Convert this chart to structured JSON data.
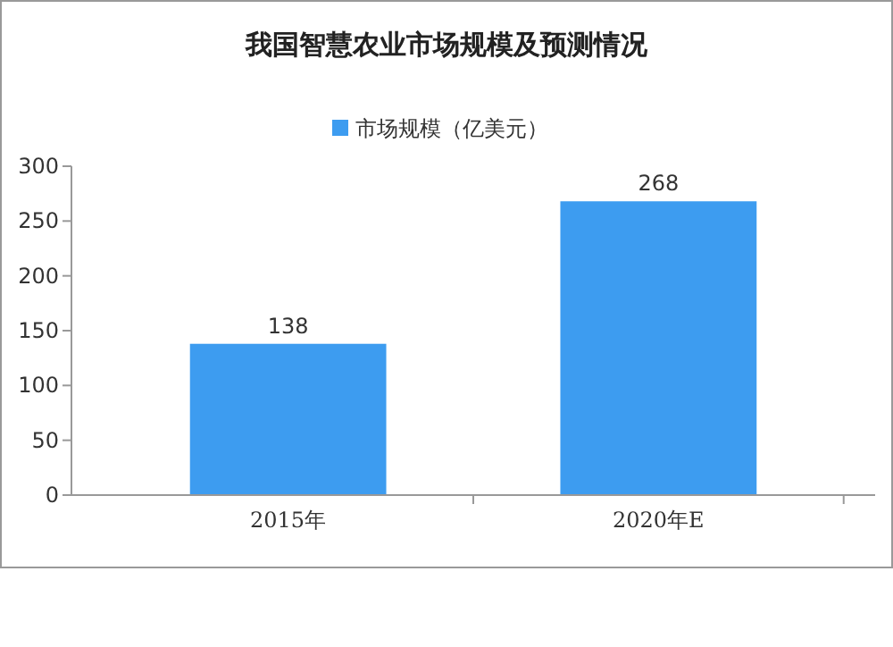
{
  "chart_data": {
    "type": "bar",
    "title": "我国智慧农业市场规模及预测情况",
    "categories": [
      "2015年",
      "2020年E"
    ],
    "series": [
      {
        "name": "市场规模（亿美元）",
        "color": "#3d9cf0",
        "values": [
          138,
          268
        ]
      }
    ],
    "ylim": [
      0,
      300
    ],
    "yticks": [
      0,
      50,
      100,
      150,
      200,
      250,
      300
    ],
    "data_labels": true,
    "legend": "top",
    "grid": false
  }
}
